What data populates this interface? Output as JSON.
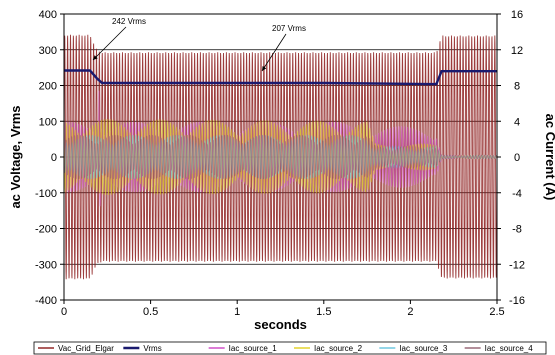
{
  "chart_data": {
    "type": "line",
    "xlabel": "seconds",
    "ylabel": "ac Voltage, Vrms",
    "y2label": "ac Current (A)",
    "xlim": [
      0,
      2.5
    ],
    "ylim": [
      -400,
      400
    ],
    "y2lim": [
      -16,
      16
    ],
    "x_ticks": [
      0,
      0.5,
      1,
      1.5,
      2,
      2.5
    ],
    "x_tick_labels": [
      "0",
      "0.5",
      "1",
      "1.5",
      "2",
      "2.5"
    ],
    "y_ticks": [
      -400,
      -300,
      -200,
      -100,
      0,
      100,
      200,
      300,
      400
    ],
    "y2_ticks": [
      -16,
      -12,
      -8,
      -4,
      0,
      4,
      8,
      12,
      16
    ],
    "grid": true,
    "legend_position": "bottom",
    "annotations": [
      {
        "text": "242 Vrms",
        "x": 0.2,
        "y": 242
      },
      {
        "text": "207 Vrms",
        "x": 1.1,
        "y": 207
      }
    ],
    "series": [
      {
        "name": "Vac_Grid_Elgar",
        "color": "#8b1a1a",
        "axis": "left",
        "kind": "sine",
        "envelope": [
          [
            0,
            342
          ],
          [
            0.15,
            342
          ],
          [
            0.19,
            300
          ],
          [
            0.22,
            293
          ],
          [
            2.15,
            293
          ],
          [
            2.18,
            340
          ],
          [
            2.5,
            340
          ]
        ]
      },
      {
        "name": "Vrms",
        "color": "#1a1a6e",
        "axis": "left",
        "kind": "step",
        "points": [
          [
            0,
            242
          ],
          [
            0.15,
            242
          ],
          [
            0.19,
            220
          ],
          [
            0.22,
            207
          ],
          [
            1.5,
            207
          ],
          [
            2.1,
            204
          ],
          [
            2.15,
            204
          ],
          [
            2.18,
            240
          ],
          [
            2.5,
            240
          ]
        ]
      },
      {
        "name": "Iac_source_1",
        "color": "#d050c8",
        "axis": "right",
        "kind": "current",
        "points": [
          [
            0,
            4
          ],
          [
            0.2,
            4
          ],
          [
            0.2,
            14
          ],
          [
            0.22,
            4
          ],
          [
            1.75,
            4
          ],
          [
            1.8,
            3.5
          ],
          [
            2.15,
            3.5
          ],
          [
            2.18,
            0.2
          ],
          [
            2.5,
            0.2
          ]
        ]
      },
      {
        "name": "Iac_source_2",
        "color": "#e0d020",
        "axis": "right",
        "kind": "current",
        "points": [
          [
            0,
            4.3
          ],
          [
            1.75,
            4
          ],
          [
            1.8,
            1.5
          ],
          [
            2.15,
            1.5
          ],
          [
            2.18,
            0.2
          ],
          [
            2.5,
            0.2
          ]
        ]
      },
      {
        "name": "Iac_source_3",
        "color": "#70c8e0",
        "axis": "right",
        "kind": "current",
        "points": [
          [
            0,
            2.5
          ],
          [
            1.75,
            2.5
          ],
          [
            1.8,
            1.2
          ],
          [
            2.15,
            1.2
          ],
          [
            2.18,
            0.2
          ],
          [
            2.5,
            0.2
          ]
        ]
      },
      {
        "name": "Iac_source_4",
        "color": "#9a6a78",
        "axis": "right",
        "kind": "current",
        "points": [
          [
            0,
            2.5
          ],
          [
            1.75,
            2.5
          ],
          [
            1.8,
            1.2
          ],
          [
            2.15,
            1.2
          ],
          [
            2.18,
            0.2
          ],
          [
            2.5,
            0.2
          ]
        ]
      }
    ]
  }
}
